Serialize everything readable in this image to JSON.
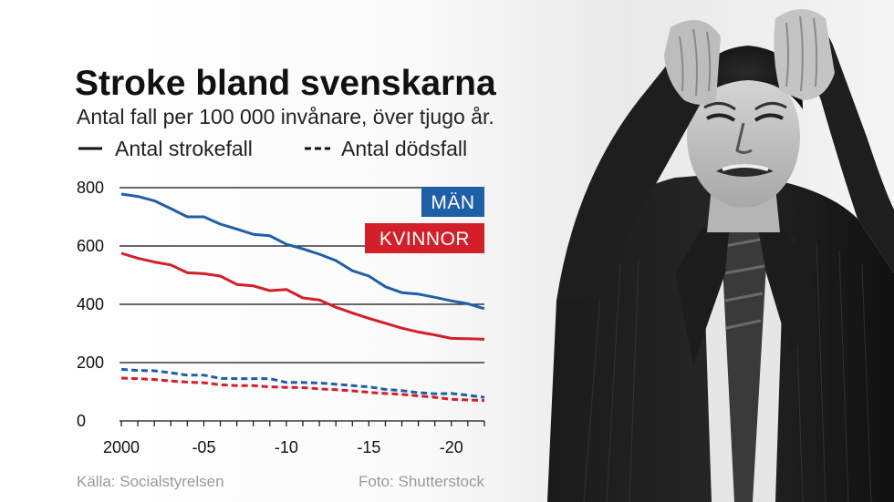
{
  "colors": {
    "men": "#1f5fa8",
    "women": "#d31f2a",
    "text": "#111111",
    "footer": "#9a9a9a"
  },
  "legend": {
    "solid_label": "Antal strokefall",
    "dashed_label": "Antal dödsfall"
  },
  "badges": {
    "men": "MÄN",
    "women": "KVINNOR"
  },
  "footer": {
    "source": "Källa: Socialstyrelsen",
    "photo": "Foto: Shutterstock"
  },
  "photo_icon": "stressed-man-photo",
  "chart_data": {
    "type": "line",
    "title": "Stroke bland svenskarna",
    "subtitle": "Antal fall per 100 000 invånare, över tjugo år.",
    "xlabel": "",
    "ylabel": "",
    "x": [
      2000,
      2001,
      2002,
      2003,
      2004,
      2005,
      2006,
      2007,
      2008,
      2009,
      2010,
      2011,
      2012,
      2013,
      2014,
      2015,
      2016,
      2017,
      2018,
      2019,
      2020,
      2021,
      2022
    ],
    "xlim": [
      2000,
      2022
    ],
    "ylim": [
      0,
      800
    ],
    "yticks": [
      0,
      200,
      400,
      600,
      800
    ],
    "xticks": [
      {
        "value": 2000,
        "label": "2000"
      },
      {
        "value": 2005,
        "label": "-05"
      },
      {
        "value": 2010,
        "label": "-10"
      },
      {
        "value": 2015,
        "label": "-15"
      },
      {
        "value": 2020,
        "label": "-20"
      }
    ],
    "grid": "horizontal",
    "series": [
      {
        "name": "Män",
        "measure": "Antal strokefall",
        "style": "solid",
        "color": "#1f5fa8",
        "values": [
          778,
          770,
          755,
          728,
          700,
          700,
          675,
          658,
          640,
          635,
          606,
          590,
          572,
          550,
          515,
          497,
          460,
          440,
          435,
          424,
          412,
          402,
          385
        ]
      },
      {
        "name": "Kvinnor",
        "measure": "Antal strokefall",
        "style": "solid",
        "color": "#d31f2a",
        "values": [
          575,
          558,
          545,
          535,
          508,
          505,
          497,
          468,
          463,
          447,
          451,
          422,
          415,
          390,
          370,
          352,
          335,
          318,
          305,
          295,
          283,
          282,
          280
        ]
      },
      {
        "name": "Män",
        "measure": "Antal dödsfall",
        "style": "dashed",
        "color": "#1f5fa8",
        "values": [
          177,
          173,
          172,
          165,
          157,
          157,
          146,
          145,
          145,
          145,
          132,
          132,
          130,
          126,
          121,
          117,
          108,
          104,
          97,
          93,
          94,
          88,
          81
        ]
      },
      {
        "name": "Kvinnor",
        "measure": "Antal dödsfall",
        "style": "dashed",
        "color": "#d31f2a",
        "values": [
          147,
          145,
          142,
          137,
          133,
          131,
          124,
          121,
          121,
          117,
          115,
          114,
          110,
          107,
          103,
          98,
          94,
          91,
          86,
          81,
          74,
          72,
          70
        ]
      }
    ]
  }
}
